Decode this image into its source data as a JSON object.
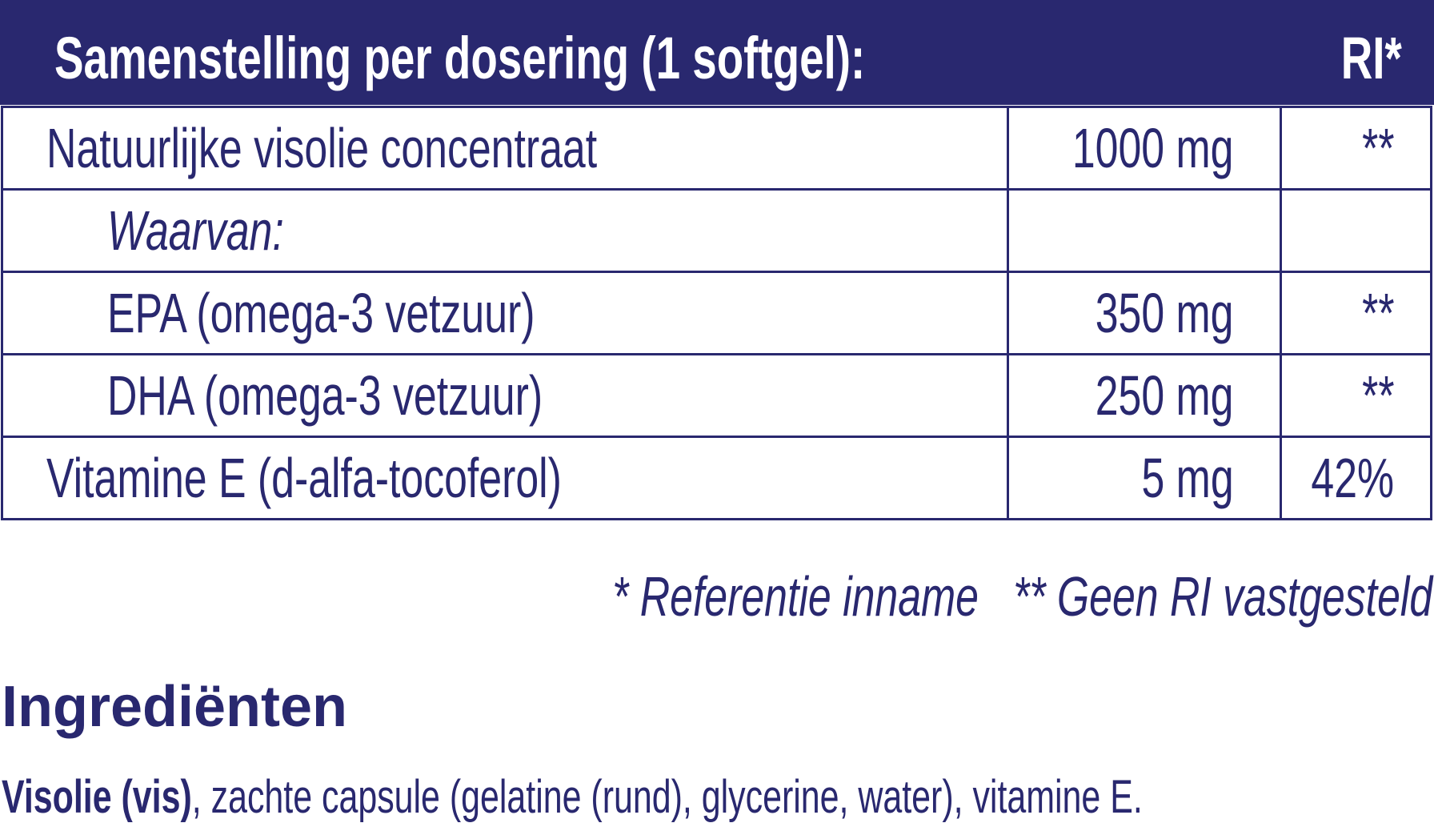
{
  "header": {
    "title": "Samenstelling per dosering (1 softgel):",
    "ri": "RI*"
  },
  "rows": [
    {
      "name": "Natuurlijke visolie concentraat",
      "amount": "1000 mg",
      "ri": "**"
    },
    {
      "name": "Waarvan:",
      "amount": "",
      "ri": ""
    },
    {
      "name": "EPA (omega-3 vetzuur)",
      "amount": "350 mg",
      "ri": "**"
    },
    {
      "name": "DHA (omega-3 vetzuur)",
      "amount": "250 mg",
      "ri": "**"
    },
    {
      "name": "Vitamine E (d-alfa-tocoferol)",
      "amount": "5 mg",
      "ri": "42%"
    }
  ],
  "footnote": "* Referentie inname   ** Geen RI vastgesteld",
  "ingredients": {
    "title": "Ingrediënten",
    "bold": "Visolie (vis)",
    "rest": ", zachte capsule (gelatine (rund), glycerine, water), vitamine E."
  }
}
